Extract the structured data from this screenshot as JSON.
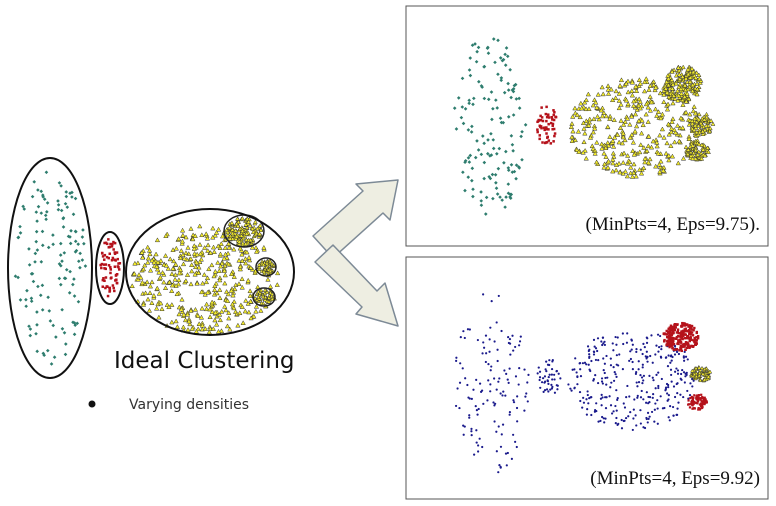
{
  "figure": {
    "title": "Ideal Clustering",
    "bullet_text": "Varying densities",
    "top_panel_caption": "(MinPts=4, Eps=9.75).",
    "bottom_panel_caption": "(MinPts=4, Eps=9.92)"
  },
  "colors": {
    "cluster_teal": "#2e7d6e",
    "cluster_red": "#b5121b",
    "cluster_yellow": "#f2ea2a",
    "outline_dark": "#222222",
    "noise_navy": "#1a1a8c",
    "arrow_fill": "#eeeee2",
    "arrow_stroke": "#7d8a96"
  },
  "icons": {
    "bullet": "bullet-dot-icon",
    "arrow_up": "arrow-up-right-icon",
    "arrow_down": "arrow-down-right-icon"
  }
}
